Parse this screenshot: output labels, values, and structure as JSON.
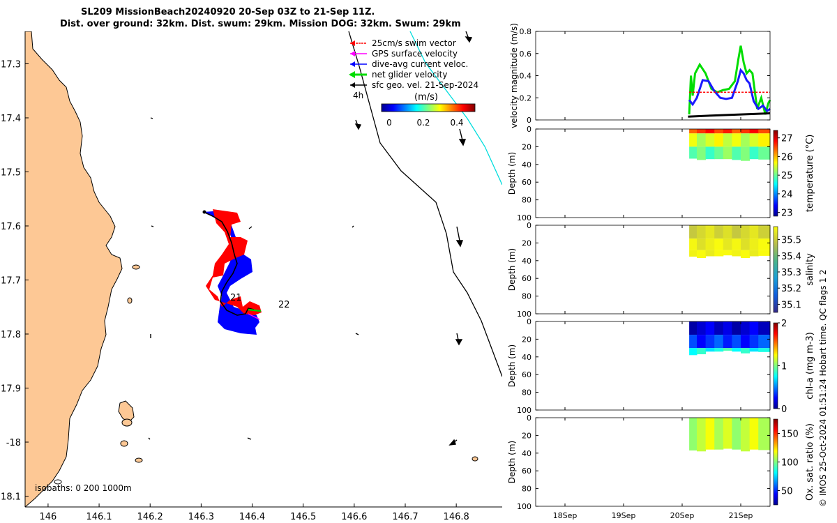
{
  "title": {
    "line1": "SL209 MissionBeach20240920 20-Sep 03Z to 21-Sep 11Z.",
    "line2": "Dist. over ground: 32km. Dist. swum: 29km. Mission DOG: 32km. Swum: 29km"
  },
  "map": {
    "lon_ticks": [
      "146",
      "146.1",
      "146.2",
      "146.3",
      "146.4",
      "146.5",
      "146.6",
      "146.7",
      "146.8"
    ],
    "lat_ticks": [
      "17.3",
      "17.4",
      "17.5",
      "17.6",
      "17.7",
      "17.8",
      "17.9",
      "-18",
      "18.1"
    ],
    "lon_range": [
      145.955,
      146.89
    ],
    "lat_range": [
      17.24,
      18.12
    ],
    "legend": [
      {
        "label": "25cm/s swim vector",
        "color": "#ff0000"
      },
      {
        "label": "GPS surface velocity",
        "color": "#ff00ff"
      },
      {
        "label": "dive-avg current veloc.",
        "color": "#0000ff"
      },
      {
        "label": "net glider velocity",
        "color": "#00cc00"
      },
      {
        "label": "sfc geo. vel. 21-Sep-2024",
        "color": "#000000"
      }
    ],
    "interval_label": "4h",
    "colorbar_title": "(m/s)",
    "colorbar_ticks": [
      "0",
      "0.2",
      "0.4"
    ],
    "day_labels": [
      "21",
      "22"
    ],
    "isobaths_label": "isobaths: 0   200  1000m",
    "colors": {
      "land": "#fdc895",
      "track": "#000000",
      "current": "#0000ff",
      "swim": "#ff0000",
      "isobath": "#00dddd"
    }
  },
  "footer": "© IMOS 25-Oct-2024 01:51:24 Hobart time. QC flags 1  2",
  "chart_data": [
    {
      "type": "line",
      "ylabel": "velocity magnitude (m/s)",
      "ylim": [
        0,
        0.8
      ],
      "yticks": [
        "0",
        "0.2",
        "0.4",
        "0.6",
        "0.8"
      ],
      "xlim": [
        17.5,
        21.5
      ],
      "series": [
        {
          "name": "net glider velocity",
          "color": "#00dd00",
          "x": [
            20.12,
            20.15,
            20.18,
            20.22,
            20.3,
            20.4,
            20.5,
            20.6,
            20.7,
            20.8,
            20.9,
            20.96,
            21.0,
            21.05,
            21.1,
            21.15,
            21.2,
            21.28,
            21.35,
            21.42,
            21.47,
            21.5
          ],
          "values": [
            0.05,
            0.4,
            0.22,
            0.42,
            0.5,
            0.42,
            0.28,
            0.25,
            0.27,
            0.28,
            0.35,
            0.55,
            0.67,
            0.52,
            0.42,
            0.45,
            0.42,
            0.1,
            0.2,
            0.05,
            0.15,
            0.18
          ]
        },
        {
          "name": "dive-avg current veloc.",
          "color": "#1a1aff",
          "x": [
            20.12,
            20.18,
            20.25,
            20.35,
            20.45,
            20.55,
            20.65,
            20.75,
            20.85,
            20.95,
            21.0,
            21.05,
            21.1,
            21.15,
            21.22,
            21.3,
            21.38,
            21.45,
            21.5
          ],
          "values": [
            0.18,
            0.14,
            0.2,
            0.36,
            0.35,
            0.26,
            0.2,
            0.19,
            0.2,
            0.35,
            0.45,
            0.42,
            0.36,
            0.33,
            0.17,
            0.1,
            0.13,
            0.08,
            0.1
          ]
        },
        {
          "name": "25cm/s swim vector",
          "color": "#ff0000",
          "dashed": true,
          "x": [
            20.12,
            21.5
          ],
          "values": [
            0.25,
            0.25
          ]
        },
        {
          "name": "sfc geo. vel.",
          "color": "#000000",
          "x": [
            20.1,
            20.5,
            21.0,
            21.5
          ],
          "values": [
            0.03,
            0.04,
            0.05,
            0.06
          ]
        }
      ]
    },
    {
      "type": "heatmap",
      "ylabel": "Depth (m)",
      "cbar_label": "temperature (°C)",
      "ylim": [
        100,
        0
      ],
      "yticks": [
        "0",
        "20",
        "40",
        "60",
        "80",
        "100"
      ],
      "cticks": [
        "23",
        "24",
        "25",
        "26",
        "27"
      ],
      "crange": [
        22.8,
        27.4
      ],
      "xlim": [
        17.5,
        21.5
      ],
      "profile_x": [
        20.12,
        20.25,
        20.4,
        20.55,
        20.7,
        20.85,
        21.0,
        21.15,
        21.3,
        21.5
      ],
      "max_depth": [
        35,
        32,
        38,
        30,
        38,
        30,
        40,
        32,
        36,
        33
      ],
      "layers": [
        {
          "depth": [
            0,
            5
          ],
          "value": 26.6
        },
        {
          "depth": [
            5,
            20
          ],
          "value": 25.5
        },
        {
          "depth": [
            20,
            45
          ],
          "value": 25.0
        }
      ]
    },
    {
      "type": "heatmap",
      "ylabel": "Depth (m)",
      "cbar_label": "salinity",
      "ylim": [
        100,
        0
      ],
      "yticks": [
        "0",
        "20",
        "40",
        "60",
        "80",
        "100"
      ],
      "cticks": [
        "35.1",
        "35.2",
        "35.3",
        "35.4",
        "35.5"
      ],
      "crange": [
        35.05,
        35.58
      ],
      "xlim": [
        17.5,
        21.5
      ],
      "profile_x": [
        20.12,
        20.25,
        20.4,
        20.55,
        20.7,
        20.85,
        21.0,
        21.15,
        21.3,
        21.5
      ],
      "max_depth": [
        35,
        36,
        38,
        32,
        38,
        30,
        40,
        34,
        36,
        33
      ],
      "layers": [
        {
          "depth": [
            0,
            15
          ],
          "value": 35.52
        },
        {
          "depth": [
            15,
            28
          ],
          "value": 35.56
        },
        {
          "depth": [
            28,
            45
          ],
          "value": 35.58
        }
      ]
    },
    {
      "type": "heatmap",
      "ylabel": "Depth (m)",
      "cbar_label": "chl-a (mg m-3)",
      "ylim": [
        100,
        0
      ],
      "yticks": [
        "0",
        "20",
        "40",
        "60",
        "80",
        "100"
      ],
      "cticks": [
        "0",
        "1",
        "2"
      ],
      "crange": [
        0,
        2
      ],
      "xlim": [
        17.5,
        21.5
      ],
      "profile_x": [
        20.12,
        20.25,
        20.4,
        20.55,
        20.7,
        20.85,
        21.0,
        21.15,
        21.3,
        21.5
      ],
      "max_depth": [
        40,
        36,
        38,
        30,
        38,
        28,
        40,
        32,
        36,
        33
      ],
      "layers": [
        {
          "depth": [
            0,
            15
          ],
          "value": 0.15
        },
        {
          "depth": [
            15,
            30
          ],
          "value": 0.35
        },
        {
          "depth": [
            30,
            45
          ],
          "value": 0.8
        }
      ]
    },
    {
      "type": "heatmap",
      "ylabel": "Depth (m)",
      "cbar_label": "Ox. sat. ratio (%)",
      "ylim": [
        100,
        0
      ],
      "yticks": [
        "0",
        "20",
        "40",
        "60",
        "80",
        "100"
      ],
      "cticks": [
        "50",
        "100",
        "150"
      ],
      "crange": [
        25,
        175
      ],
      "xlim": [
        17.5,
        21.5
      ],
      "xticks": [
        {
          "value": 18,
          "label": "18Sep"
        },
        {
          "value": 19,
          "label": "19Sep"
        },
        {
          "value": 20,
          "label": "20Sep"
        },
        {
          "value": 21,
          "label": "21Sep"
        }
      ],
      "profile_x": [
        20.12,
        20.25,
        20.4,
        20.55,
        20.7,
        20.85,
        21.0,
        21.15,
        21.3,
        21.5
      ],
      "max_depth": [
        38,
        36,
        40,
        32,
        40,
        30,
        42,
        34,
        38,
        35
      ],
      "layers": [
        {
          "depth": [
            0,
            45
          ],
          "value": 110
        }
      ]
    }
  ]
}
